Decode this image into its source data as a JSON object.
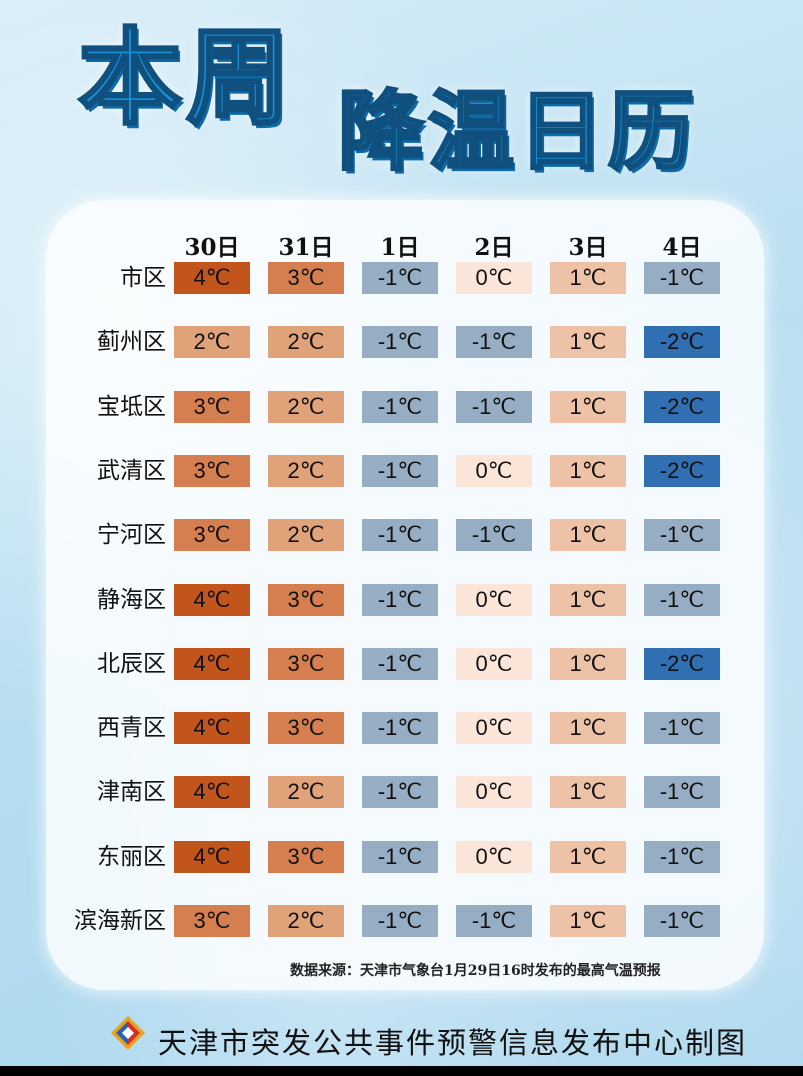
{
  "header": {
    "title_part1": "本周",
    "title_part2": "降温日历"
  },
  "chart_data": {
    "type": "table",
    "columns": [
      "30日",
      "31日",
      "1日",
      "2日",
      "3日",
      "4日"
    ],
    "rows": [
      {
        "district": "市区",
        "values": [
          4,
          3,
          -1,
          0,
          1,
          -1
        ]
      },
      {
        "district": "蓟州区",
        "values": [
          2,
          2,
          -1,
          -1,
          1,
          -2
        ]
      },
      {
        "district": "宝坻区",
        "values": [
          3,
          2,
          -1,
          -1,
          1,
          -2
        ]
      },
      {
        "district": "武清区",
        "values": [
          3,
          2,
          -1,
          0,
          1,
          -2
        ]
      },
      {
        "district": "宁河区",
        "values": [
          3,
          2,
          -1,
          -1,
          1,
          -1
        ]
      },
      {
        "district": "静海区",
        "values": [
          4,
          3,
          -1,
          0,
          1,
          -1
        ]
      },
      {
        "district": "北辰区",
        "values": [
          4,
          3,
          -1,
          0,
          1,
          -2
        ]
      },
      {
        "district": "西青区",
        "values": [
          4,
          3,
          -1,
          0,
          1,
          -1
        ]
      },
      {
        "district": "津南区",
        "values": [
          4,
          2,
          -1,
          0,
          1,
          -1
        ]
      },
      {
        "district": "东丽区",
        "values": [
          4,
          3,
          -1,
          0,
          1,
          -1
        ]
      },
      {
        "district": "滨海新区",
        "values": [
          3,
          2,
          -1,
          -1,
          1,
          -1
        ]
      }
    ],
    "unit": "℃",
    "color_scale": {
      "4": "#c2551b",
      "3": "#d57e4f",
      "2": "#e0a279",
      "1": "#eec2a6",
      "0": "#fbe5d8",
      "-1": "#97adc4",
      "-2": "#2f6fb2"
    }
  },
  "source_text": "数据来源：天津市气象台1月29日16时发布的最高气温预报",
  "footer": {
    "org": "天津市突发公共事件预警信息发布中心制图",
    "logo_icon": "warning-center-logo-icon"
  }
}
